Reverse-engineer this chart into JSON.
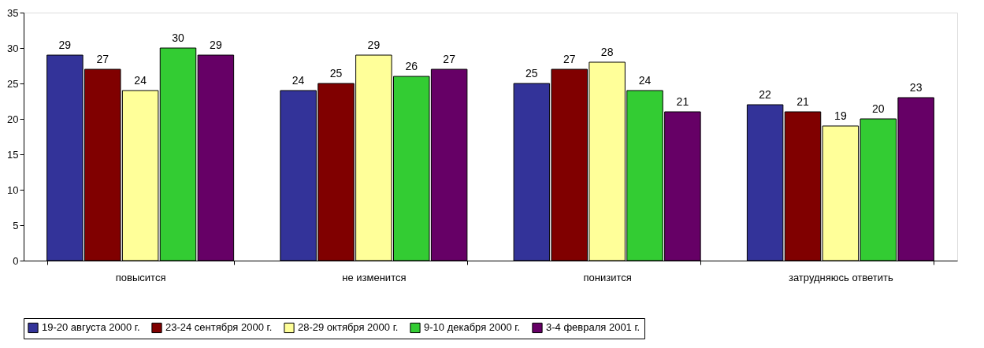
{
  "chart_data": {
    "type": "bar",
    "categories": [
      "повысится",
      "не изменится",
      "понизится",
      "затрудняюсь ответить"
    ],
    "series": [
      {
        "name": "19-20 августа 2000 г.",
        "color": "#333399",
        "values": [
          29,
          24,
          25,
          22
        ]
      },
      {
        "name": "23-24 сентября 2000 г.",
        "color": "#800000",
        "values": [
          27,
          25,
          27,
          21
        ]
      },
      {
        "name": "28-29 октября 2000 г.",
        "color": "#ffff99",
        "values": [
          24,
          29,
          28,
          19
        ]
      },
      {
        "name": "9-10 декабря 2000 г.",
        "color": "#33cc33",
        "values": [
          30,
          26,
          24,
          20
        ]
      },
      {
        "name": "3-4 февраля 2001 г.",
        "color": "#660066",
        "values": [
          29,
          27,
          21,
          23
        ]
      }
    ],
    "ylim": [
      0,
      35
    ],
    "yticks": [
      0,
      5,
      10,
      15,
      20,
      25,
      30,
      35
    ],
    "grid": false,
    "legend": "bottom",
    "data_labels": true
  }
}
